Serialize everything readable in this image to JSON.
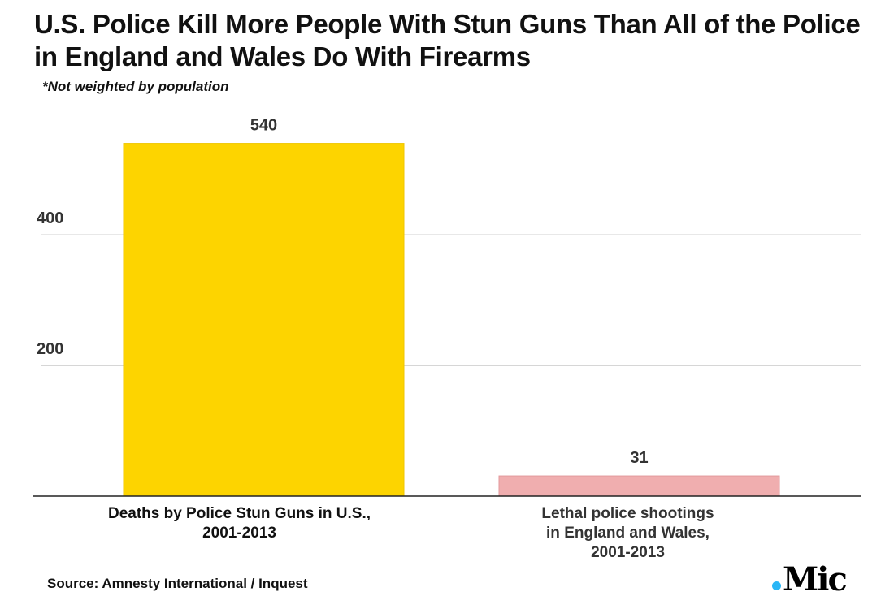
{
  "chart_data": {
    "type": "bar",
    "title": "U.S. Police Kill More People With Stun Guns Than All of the Police in England and Wales Do With Firearms",
    "subtitle": "*Not weighted by population",
    "categories": [
      "Deaths by Police Stun Guns in U.S.,\n2001-2013",
      "Lethal police shootings\nin England and Wales,\n2001-2013"
    ],
    "values": [
      540,
      31
    ],
    "data_labels": [
      "540",
      "31"
    ],
    "colors": [
      "#FDD400",
      "#F0AEAF"
    ],
    "yticks": [
      200,
      400
    ],
    "ytick_labels": [
      "200",
      "400"
    ],
    "ylim": [
      0,
      560
    ],
    "grid": true,
    "xlabel": "",
    "ylabel": ""
  },
  "footer": {
    "source": "Source: Amnesty International / Inquest",
    "logo": "Mic"
  }
}
